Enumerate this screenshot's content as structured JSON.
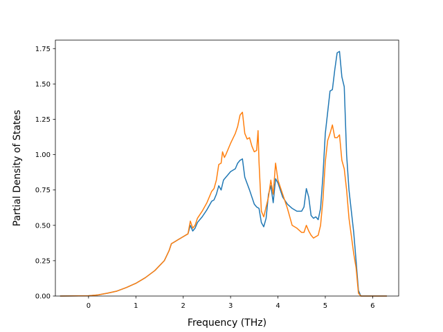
{
  "chart_data": {
    "type": "line",
    "title": "",
    "xlabel": "Frequency (THz)",
    "ylabel": "Partial Density of States",
    "xlim": [
      -0.7,
      6.55
    ],
    "ylim": [
      0,
      1.81
    ],
    "xticks": [
      0,
      1,
      2,
      3,
      4,
      5,
      6
    ],
    "xtick_labels": [
      "0",
      "1",
      "2",
      "3",
      "4",
      "5",
      "6"
    ],
    "yticks": [
      0,
      0.25,
      0.5,
      0.75,
      1.0,
      1.25,
      1.5,
      1.75
    ],
    "ytick_labels": [
      "0.00",
      "0.25",
      "0.50",
      "0.75",
      "1.00",
      "1.25",
      "1.50",
      "1.75"
    ],
    "grid": false,
    "legend": "none",
    "series": [
      {
        "color": "#1f77b4",
        "x": [
          -0.6,
          0,
          0.2,
          0.4,
          0.6,
          0.8,
          1.0,
          1.2,
          1.4,
          1.6,
          1.7,
          1.75,
          2.0,
          2.1,
          2.15,
          2.2,
          2.25,
          2.3,
          2.4,
          2.5,
          2.6,
          2.65,
          2.7,
          2.75,
          2.8,
          2.85,
          2.9,
          3.0,
          3.1,
          3.15,
          3.2,
          3.25,
          3.3,
          3.4,
          3.5,
          3.55,
          3.6,
          3.65,
          3.7,
          3.75,
          3.8,
          3.85,
          3.9,
          3.95,
          4.0,
          4.1,
          4.2,
          4.3,
          4.4,
          4.5,
          4.55,
          4.6,
          4.65,
          4.7,
          4.75,
          4.8,
          4.85,
          4.9,
          4.95,
          5.0,
          5.05,
          5.1,
          5.15,
          5.2,
          5.25,
          5.3,
          5.35,
          5.4,
          5.45,
          5.5,
          5.6,
          5.65,
          5.7,
          5.75,
          5.8,
          6.0,
          6.3
        ],
        "y": [
          0,
          0.002,
          0.008,
          0.02,
          0.035,
          0.06,
          0.09,
          0.13,
          0.18,
          0.25,
          0.32,
          0.37,
          0.42,
          0.44,
          0.5,
          0.46,
          0.48,
          0.52,
          0.56,
          0.61,
          0.67,
          0.68,
          0.72,
          0.78,
          0.75,
          0.82,
          0.84,
          0.88,
          0.9,
          0.94,
          0.96,
          0.97,
          0.84,
          0.75,
          0.65,
          0.63,
          0.62,
          0.52,
          0.49,
          0.55,
          0.72,
          0.78,
          0.66,
          0.83,
          0.8,
          0.7,
          0.65,
          0.62,
          0.6,
          0.6,
          0.63,
          0.76,
          0.7,
          0.57,
          0.55,
          0.56,
          0.54,
          0.62,
          0.85,
          1.15,
          1.3,
          1.45,
          1.46,
          1.6,
          1.72,
          1.73,
          1.55,
          1.48,
          1.0,
          0.75,
          0.45,
          0.25,
          0.04,
          0,
          0,
          0,
          0
        ]
      },
      {
        "color": "#ff7f0e",
        "x": [
          -0.6,
          0,
          0.2,
          0.4,
          0.6,
          0.8,
          1.0,
          1.2,
          1.4,
          1.6,
          1.7,
          1.75,
          2.0,
          2.1,
          2.15,
          2.2,
          2.25,
          2.3,
          2.4,
          2.5,
          2.6,
          2.65,
          2.7,
          2.75,
          2.8,
          2.83,
          2.87,
          2.9,
          3.0,
          3.1,
          3.15,
          3.2,
          3.25,
          3.3,
          3.35,
          3.4,
          3.45,
          3.5,
          3.55,
          3.58,
          3.6,
          3.65,
          3.7,
          3.75,
          3.8,
          3.85,
          3.9,
          3.95,
          4.0,
          4.05,
          4.1,
          4.2,
          4.3,
          4.4,
          4.5,
          4.55,
          4.6,
          4.65,
          4.7,
          4.75,
          4.8,
          4.85,
          4.9,
          4.95,
          5.0,
          5.05,
          5.1,
          5.15,
          5.2,
          5.25,
          5.3,
          5.35,
          5.4,
          5.45,
          5.5,
          5.6,
          5.65,
          5.7,
          5.75,
          5.8,
          6.0,
          6.3
        ],
        "y": [
          0,
          0.002,
          0.008,
          0.02,
          0.035,
          0.06,
          0.09,
          0.13,
          0.18,
          0.25,
          0.32,
          0.37,
          0.42,
          0.44,
          0.53,
          0.48,
          0.5,
          0.55,
          0.6,
          0.66,
          0.74,
          0.76,
          0.82,
          0.93,
          0.94,
          1.02,
          0.98,
          1.0,
          1.08,
          1.15,
          1.2,
          1.28,
          1.3,
          1.15,
          1.11,
          1.12,
          1.06,
          1.02,
          1.03,
          1.17,
          0.95,
          0.6,
          0.56,
          0.63,
          0.7,
          0.82,
          0.72,
          0.94,
          0.82,
          0.77,
          0.72,
          0.62,
          0.5,
          0.48,
          0.45,
          0.45,
          0.5,
          0.46,
          0.43,
          0.41,
          0.42,
          0.43,
          0.5,
          0.68,
          0.95,
          1.1,
          1.15,
          1.21,
          1.12,
          1.12,
          1.14,
          0.96,
          0.9,
          0.75,
          0.55,
          0.3,
          0.2,
          0.02,
          0,
          0,
          0,
          0
        ]
      }
    ]
  }
}
